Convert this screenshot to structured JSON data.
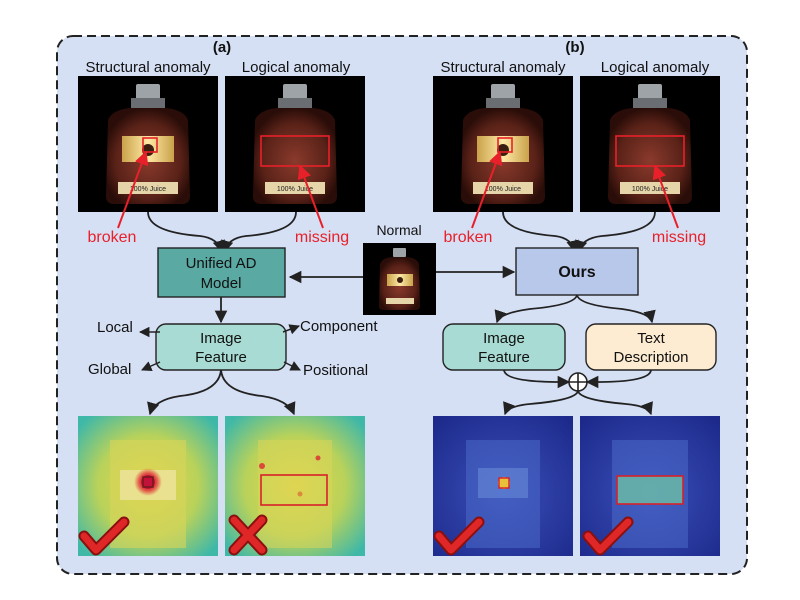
{
  "panel_a": {
    "label": "(a)",
    "structural_title": "Structural anomaly",
    "logical_title": "Logical anomaly",
    "broken_label": "broken",
    "missing_label": "missing",
    "jar_label": "100% Juice",
    "model_label_line1": "Unified AD",
    "model_label_line2": "Model",
    "feature_line1": "Image",
    "feature_line2": "Feature",
    "local_label": "Local",
    "component_label": "Component",
    "global_label": "Global",
    "positional_label": "Positional",
    "structural_result": "check",
    "logical_result": "cross"
  },
  "panel_b": {
    "label": "(b)",
    "structural_title": "Structural anomaly",
    "logical_title": "Logical anomaly",
    "broken_label": "broken",
    "missing_label": "missing",
    "jar_label": "100% Juice",
    "model_label": "Ours",
    "feature_line1": "Image",
    "feature_line2": "Feature",
    "text_line1": "Text",
    "text_line2": "Description",
    "structural_result": "check",
    "logical_result": "check"
  },
  "normal_label": "Normal",
  "colors": {
    "panel_bg": "#d6e0f4",
    "annotation_red": "#e8202a",
    "unified_box": "#5aa9a3",
    "image_feature_box": "#a8dbd3",
    "ours_box": "#b7c8ea",
    "text_box": "#fdecd2",
    "check_red": "#e02727"
  }
}
